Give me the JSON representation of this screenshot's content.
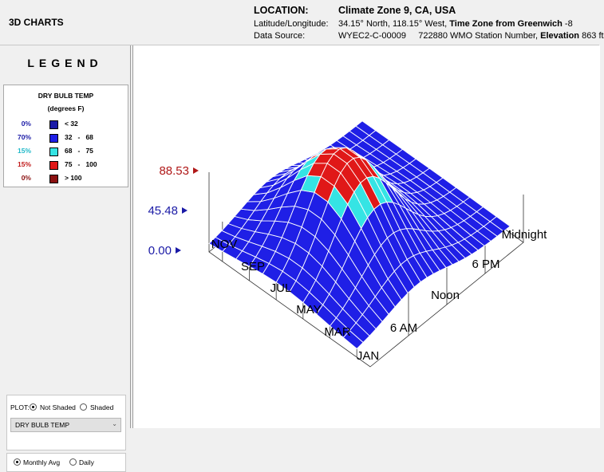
{
  "app": {
    "title": "3D CHARTS"
  },
  "header": {
    "location_label": "LOCATION:",
    "location_value": "Climate Zone 9, CA, USA",
    "latlon_label": "Latitude/Longitude:",
    "latlon_value_prefix": "34.15° North, 118.15° West, ",
    "tz_label": "Time Zone from Greenwich",
    "tz_value": " -8",
    "source_label": "Data Source:",
    "source_value": "WYEC2-C-00009     722880 WMO Station Number, ",
    "elevation_label": "Elevation",
    "elevation_value": " 863 ft"
  },
  "legend": {
    "title": "LEGEND",
    "heading": "DRY BULB TEMP",
    "units": "(degrees F)",
    "rows": [
      {
        "pct": "0%",
        "range": "< 32",
        "color": "#1a1aa6",
        "pct_color": "#1a1aa6"
      },
      {
        "pct": "70%",
        "range": "32   -   68",
        "color": "#1f1fe6",
        "pct_color": "#1a1aa6"
      },
      {
        "pct": "15%",
        "range": "68   -   75",
        "color": "#35e4e4",
        "pct_color": "#1fb8c8"
      },
      {
        "pct": "15%",
        "range": "75   -   100",
        "color": "#e01818",
        "pct_color": "#c01818"
      },
      {
        "pct": "0%",
        "range": "> 100",
        "color": "#8a1010",
        "pct_color": "#8a1010"
      }
    ]
  },
  "plot": {
    "label": "PLOT:",
    "not_shaded": "Not Shaded",
    "shaded": "Shaded",
    "selected_mode": "not_shaded",
    "variable": "DRY BULB TEMP"
  },
  "aggregation": {
    "monthly": "Monthly Avg",
    "daily": "Daily",
    "selected": "monthly"
  },
  "chart": {
    "z_labels": [
      "88.53",
      "45.48",
      "0.00"
    ],
    "month_labels": [
      "NOV",
      "SEP",
      "JUL",
      "MAY",
      "MAR",
      "JAN"
    ],
    "hour_labels": [
      "6 AM",
      "Noon",
      "6 PM",
      "Midnight"
    ],
    "colors": {
      "blue": "#1f1fe6",
      "cyan": "#35e4e4",
      "red": "#e01818",
      "z_red": "#b01818",
      "z_blue": "#1a1aa6"
    }
  }
}
